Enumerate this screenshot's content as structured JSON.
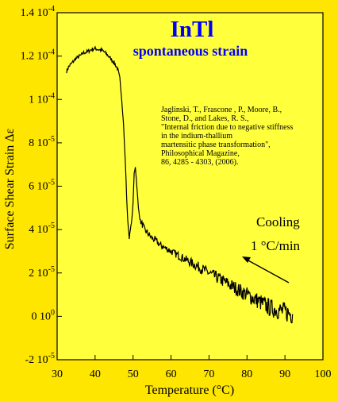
{
  "colors": {
    "page_background": "#ffe600",
    "plot_background": "#ffff3c",
    "title_color": "#0000ff",
    "data_color": "#000000"
  },
  "chart_data": {
    "type": "line",
    "title": "InTl",
    "subtitle": "spontaneous strain",
    "xlabel": "Temperature (°C)",
    "ylabel": "Surface Shear Strain Δε",
    "xlim": [
      30,
      100
    ],
    "ylim": [
      -2e-05,
      0.00014
    ],
    "x_ticks": [
      {
        "value": 30,
        "label": "30"
      },
      {
        "value": 40,
        "label": "40"
      },
      {
        "value": 50,
        "label": "50"
      },
      {
        "value": 60,
        "label": "60"
      },
      {
        "value": 70,
        "label": "70"
      },
      {
        "value": 80,
        "label": "80"
      },
      {
        "value": 90,
        "label": "90"
      },
      {
        "value": 100,
        "label": "100"
      }
    ],
    "y_ticks": [
      {
        "value": 0.00014,
        "mantissa": "1.4 10",
        "exp": "-4"
      },
      {
        "value": 0.00012,
        "mantissa": "1.2 10",
        "exp": "-4"
      },
      {
        "value": 0.0001,
        "mantissa": "1 10",
        "exp": "-4"
      },
      {
        "value": 8e-05,
        "mantissa": "8 10",
        "exp": "-5"
      },
      {
        "value": 6e-05,
        "mantissa": "6 10",
        "exp": "-5"
      },
      {
        "value": 4e-05,
        "mantissa": "4 10",
        "exp": "-5"
      },
      {
        "value": 2e-05,
        "mantissa": "2 10",
        "exp": "-5"
      },
      {
        "value": 0,
        "mantissa": "0 10",
        "exp": "0"
      },
      {
        "value": -2e-05,
        "mantissa": "-2 10",
        "exp": "-5"
      }
    ],
    "grid": false,
    "series": [
      {
        "x": [
          32.5,
          33,
          34,
          35,
          36,
          37,
          38,
          39,
          40,
          41,
          42,
          43,
          44,
          45,
          46,
          46.5,
          47,
          47.5,
          48,
          48.3,
          48.6,
          49,
          49.3,
          49.7,
          50,
          50.3,
          50.6,
          51,
          51.4,
          51.8,
          52.2,
          52.6,
          53,
          54,
          55,
          56,
          57,
          58,
          60,
          62,
          64,
          66,
          68,
          70,
          72,
          74,
          76,
          78,
          80,
          82,
          84,
          86,
          88,
          90,
          91,
          92
        ],
        "y": [
          0.000113,
          0.000115,
          0.000117,
          0.000119,
          0.00012,
          0.0001215,
          0.000122,
          0.000123,
          0.0001235,
          0.000123,
          0.0001225,
          0.000121,
          0.000119,
          0.000117,
          0.000114,
          0.00011,
          0.0001,
          8.8e-05,
          7e-05,
          5.5e-05,
          4.4e-05,
          3.6e-05,
          4e-05,
          4.5e-05,
          5.2e-05,
          6.6e-05,
          6.9e-05,
          6e-05,
          5e-05,
          4.5e-05,
          4.3e-05,
          4.2e-05,
          4e-05,
          3.8e-05,
          3.6e-05,
          3.5e-05,
          3.3e-05,
          3.2e-05,
          3e-05,
          2.8e-05,
          2.6e-05,
          2.4e-05,
          2.2e-05,
          2e-05,
          1.8e-05,
          1.6e-05,
          1.4e-05,
          1.2e-05,
          1e-05,
          8e-06,
          6e-06,
          4e-06,
          3e-06,
          2e-06,
          1.5e-06,
          1e-06
        ]
      }
    ],
    "annotations": {
      "citation": [
        "Jaglinski, T., Frascone , P., Moore, B.,",
        "Stone, D., and Lakes, R. S.,",
        "\"Internal friction  due to negative stiffness",
        "in the indium-thallium",
        "martensitic phase transformation\",",
        "Philosophical Magazine,",
        " 86, 4285 - 4303, (2006)."
      ],
      "cooling_label": "Cooling",
      "rate_label": "1 °C/min"
    }
  }
}
